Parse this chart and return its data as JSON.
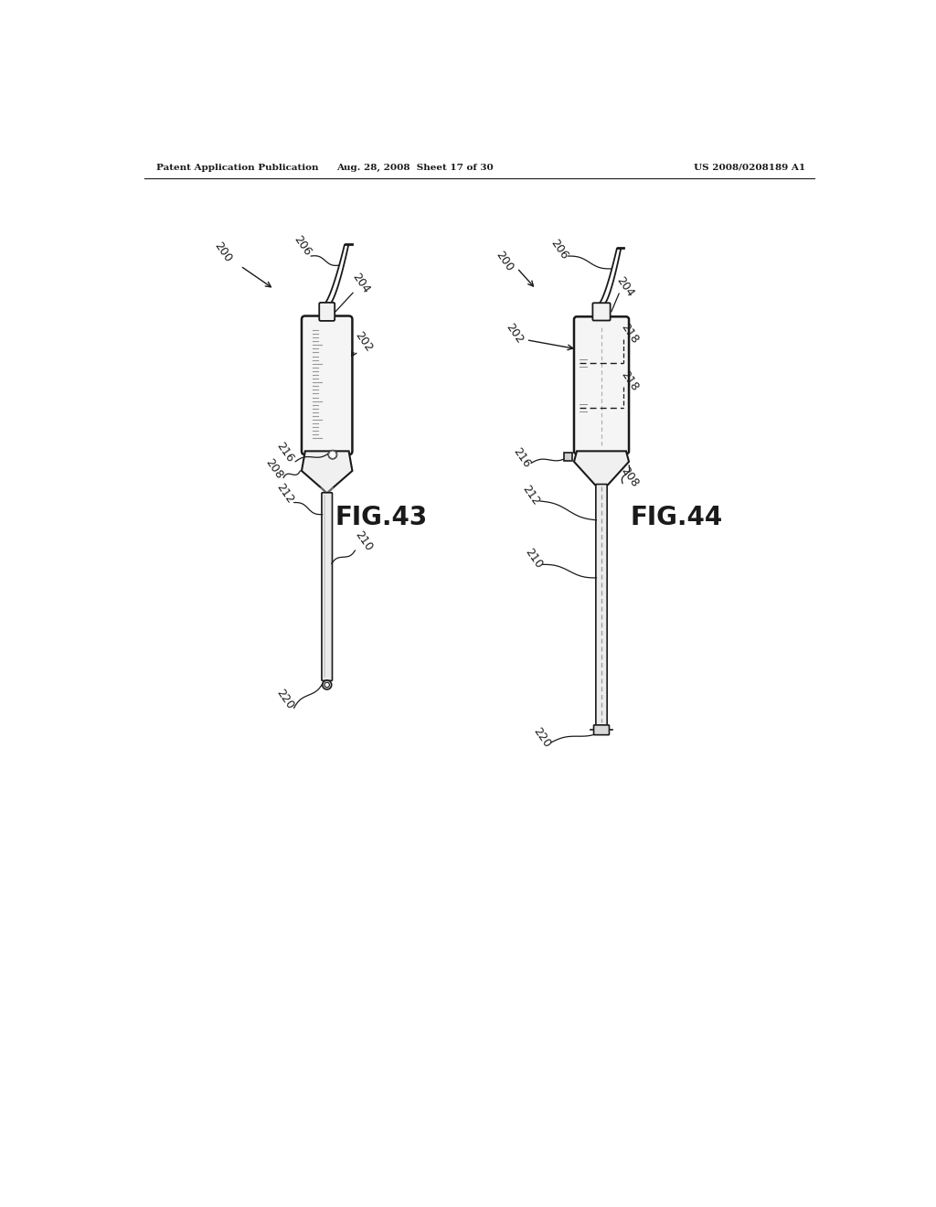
{
  "page_width": 10.24,
  "page_height": 13.2,
  "bg_color": "#ffffff",
  "header_left": "Patent Application Publication",
  "header_mid": "Aug. 28, 2008  Sheet 17 of 30",
  "header_right": "US 2008/0208189 A1",
  "fig43_label": "FIG.43",
  "fig44_label": "FIG.44",
  "lc": "#1a1a1a"
}
